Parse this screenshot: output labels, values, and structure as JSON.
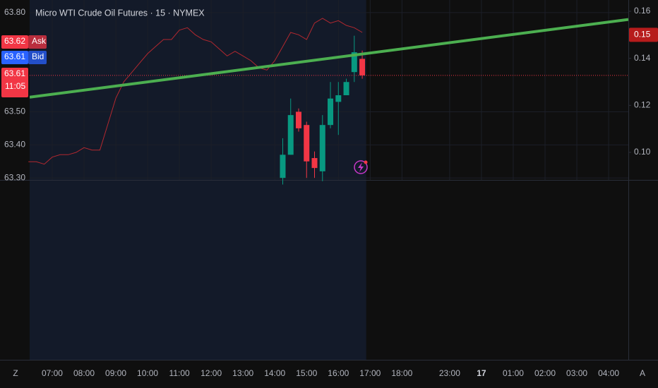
{
  "chart_data": {
    "type": "candlestick",
    "title": "Micro WTI Crude Oil Futures · 15 · NYMEX",
    "xlim": [
      6.29,
      28.62
    ],
    "xticks": [
      {
        "value": 7,
        "label": "07:00"
      },
      {
        "value": 8,
        "label": "08:00"
      },
      {
        "value": 9,
        "label": "09:00"
      },
      {
        "value": 10,
        "label": "10:00"
      },
      {
        "value": 11,
        "label": "11:00"
      },
      {
        "value": 12,
        "label": "12:00"
      },
      {
        "value": 13,
        "label": "13:00"
      },
      {
        "value": 14,
        "label": "14:00"
      },
      {
        "value": 15,
        "label": "15:00"
      },
      {
        "value": 16,
        "label": "16:00"
      },
      {
        "value": 17,
        "label": "17:00"
      },
      {
        "value": 18,
        "label": "18:00"
      },
      {
        "value": 23,
        "label": "23:00"
      },
      {
        "value": 24,
        "label": "17"
      },
      {
        "value": 25,
        "label": "01:00"
      },
      {
        "value": 26,
        "label": "02:00"
      },
      {
        "value": 27,
        "label": "03:00"
      },
      {
        "value": 28,
        "label": "04:00"
      }
    ],
    "ylim": [
      63.294,
      63.838
    ],
    "yticks": [
      {
        "value": 63.3,
        "label": "63.30"
      },
      {
        "value": 63.4,
        "label": "63.40"
      },
      {
        "value": 63.5,
        "label": "63.50"
      },
      {
        "value": 63.8,
        "label": "63.80"
      }
    ],
    "y2lim": [
      0.0883,
      0.1648
    ],
    "y2ticks": [
      {
        "value": 0.1,
        "label": "0.10"
      },
      0.12,
      0.14,
      0.16
    ],
    "grid": true,
    "session_end": 16.875,
    "candles": {
      "up_color": "#089981",
      "down_color": "#f23645",
      "x": [
        14.25,
        14.5,
        14.75,
        15,
        15.25,
        15.5,
        15.75,
        16,
        16.25,
        16.5,
        16.75
      ],
      "open": [
        63.3,
        63.37,
        63.5,
        63.46,
        63.36,
        63.32,
        63.46,
        63.53,
        63.55,
        63.62,
        63.66
      ],
      "high": [
        63.42,
        63.54,
        63.51,
        63.47,
        63.38,
        63.49,
        63.59,
        63.59,
        63.6,
        63.73,
        63.685
      ],
      "low": [
        63.28,
        63.37,
        63.44,
        63.3,
        63.3,
        63.29,
        63.45,
        63.43,
        63.55,
        63.59,
        63.6
      ],
      "close": [
        63.37,
        63.49,
        63.45,
        63.35,
        63.33,
        63.46,
        63.54,
        63.55,
        63.59,
        63.68,
        63.61
      ]
    },
    "line": {
      "axis": "y2",
      "color": "#b2282f",
      "x": [
        6.25,
        6.5,
        6.75,
        7,
        7.25,
        7.5,
        7.75,
        8,
        8.25,
        8.5,
        8.75,
        9,
        9.25,
        9.5,
        9.75,
        10,
        10.25,
        10.5,
        10.75,
        11,
        11.25,
        11.5,
        11.75,
        12,
        12.25,
        12.5,
        12.75,
        13,
        13.25,
        13.5,
        13.75,
        14,
        14.25,
        14.5,
        14.75,
        15,
        15.25,
        15.5,
        15.75,
        16,
        16.25,
        16.5,
        16.75
      ],
      "values": [
        0.096,
        0.096,
        0.095,
        0.098,
        0.099,
        0.099,
        0.1,
        0.102,
        0.101,
        0.101,
        0.112,
        0.123,
        0.13,
        0.134,
        0.138,
        0.142,
        0.145,
        0.148,
        0.148,
        0.152,
        0.153,
        0.15,
        0.148,
        0.147,
        0.144,
        0.141,
        0.143,
        0.141,
        0.139,
        0.136,
        0.135,
        0.139,
        0.145,
        0.151,
        0.15,
        0.148,
        0.155,
        0.157,
        0.155,
        0.156,
        0.154,
        0.153,
        0.151
      ]
    },
    "trendline": {
      "color": "#4caf50",
      "x": [
        6.29,
        28.62
      ],
      "values": [
        63.544,
        63.779
      ]
    },
    "quotes": {
      "ask": {
        "label": "Ask",
        "value": 63.62,
        "color": "#f23645"
      },
      "bid": {
        "label": "Bid",
        "value": 63.61,
        "color": "#2962ff"
      },
      "last": {
        "value": 63.61,
        "countdown": "11:05",
        "color": "#f23645"
      }
    },
    "y2_last": 0.15,
    "axis_buttons": {
      "left": "Z",
      "right": "A"
    }
  }
}
